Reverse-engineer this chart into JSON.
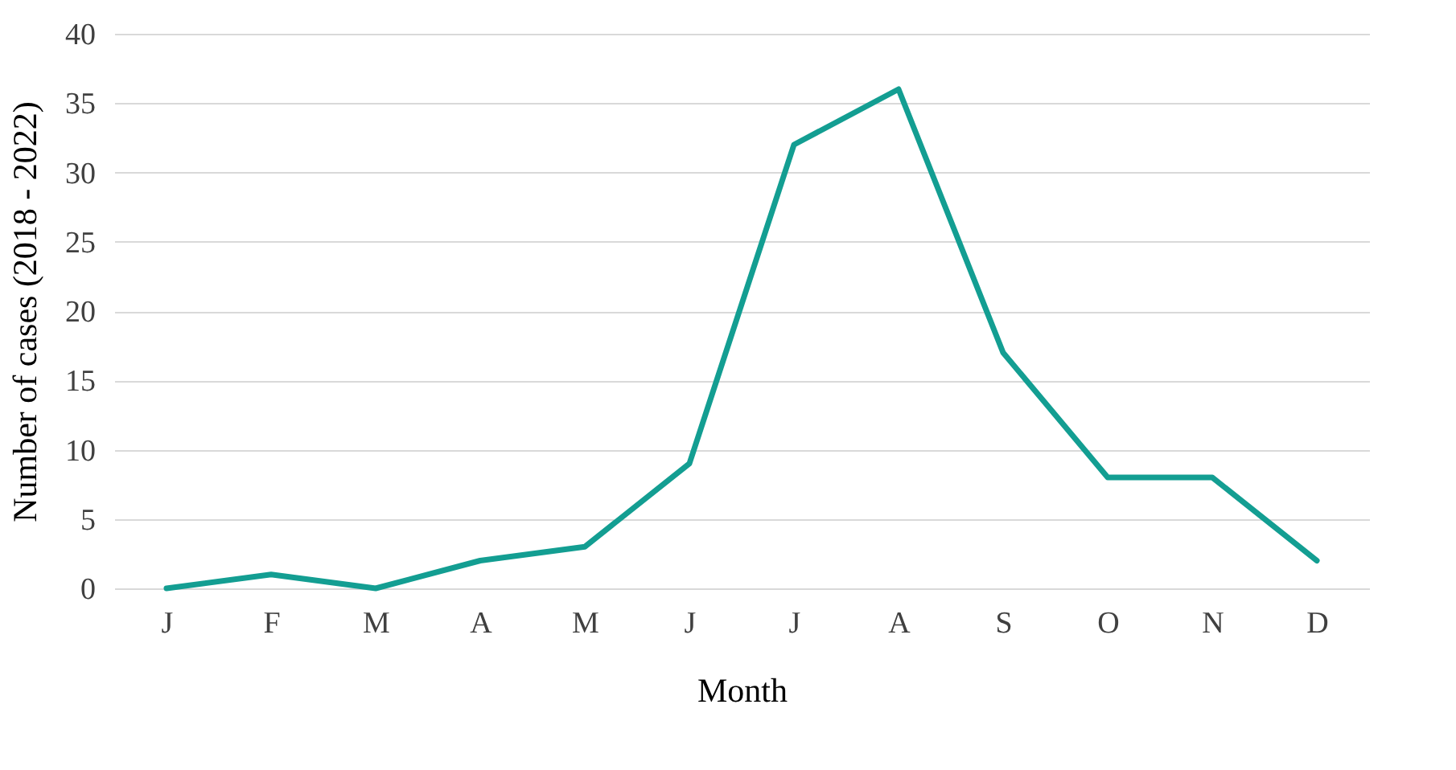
{
  "chart_data": {
    "type": "line",
    "xlabel": "Month",
    "ylabel": "Number of cases (2018 - 2022)",
    "categories": [
      "J",
      "F",
      "M",
      "A",
      "M",
      "J",
      "J",
      "A",
      "S",
      "O",
      "N",
      "D"
    ],
    "series": [
      {
        "color": "#139e92",
        "values": [
          0,
          1,
          0,
          2,
          3,
          9,
          32,
          36,
          17,
          8,
          8,
          2
        ]
      }
    ],
    "ylim": [
      0,
      40
    ],
    "yticks": [
      0,
      5,
      10,
      15,
      20,
      25,
      30,
      35,
      40
    ],
    "grid": "y",
    "legend": false,
    "marker": "none",
    "line_style": "solid"
  }
}
